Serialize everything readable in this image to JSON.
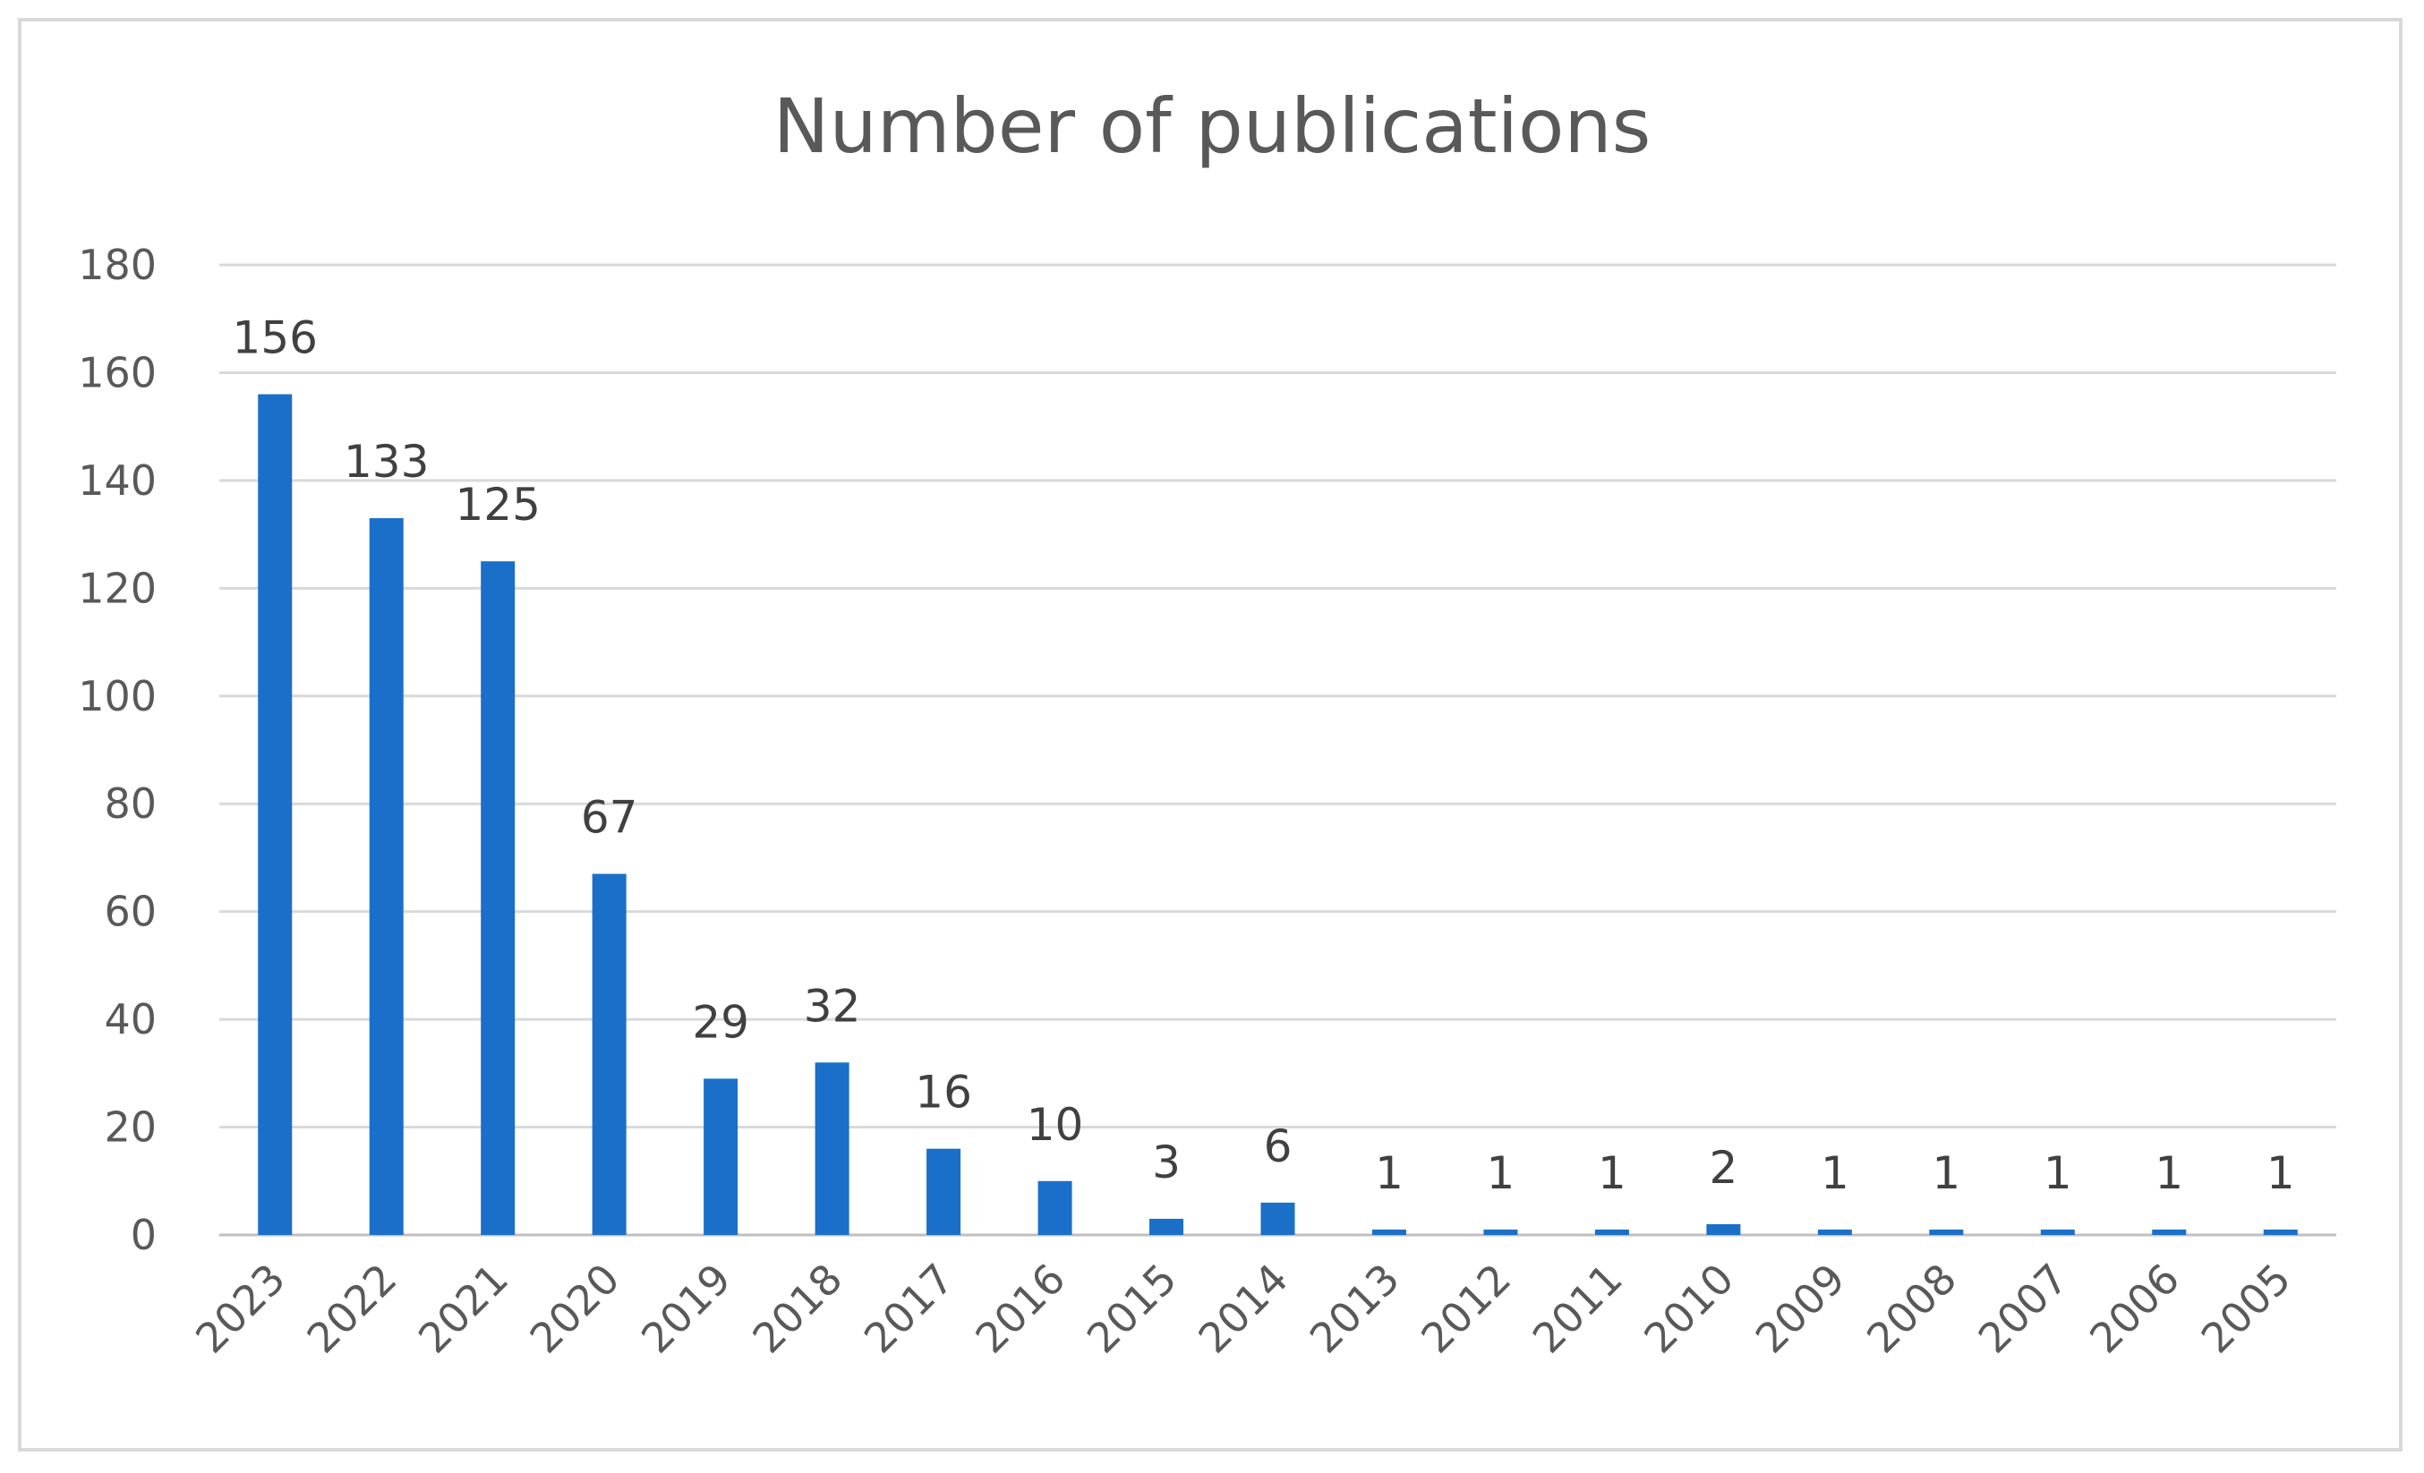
{
  "chart_data": {
    "type": "bar",
    "title": "Number of publications",
    "xlabel": "",
    "ylabel": "",
    "categories": [
      "2023",
      "2022",
      "2021",
      "2020",
      "2019",
      "2018",
      "2017",
      "2016",
      "2015",
      "2014",
      "2013",
      "2012",
      "2011",
      "2010",
      "2009",
      "2008",
      "2007",
      "2006",
      "2005"
    ],
    "values": [
      156,
      133,
      125,
      67,
      29,
      32,
      16,
      10,
      3,
      6,
      1,
      1,
      1,
      2,
      1,
      1,
      1,
      1,
      1
    ],
    "ylim": [
      0,
      180
    ],
    "y_ticks": [
      0,
      20,
      40,
      60,
      80,
      100,
      120,
      140,
      160,
      180
    ],
    "grid": true,
    "legend": "none",
    "data_labels": true,
    "x_tick_rotation_deg": -45,
    "bar_color": "#1a6fc9",
    "gridline_color": "#d9d9d9",
    "border_color": "#d9d9d9",
    "text_color": "#595959"
  }
}
